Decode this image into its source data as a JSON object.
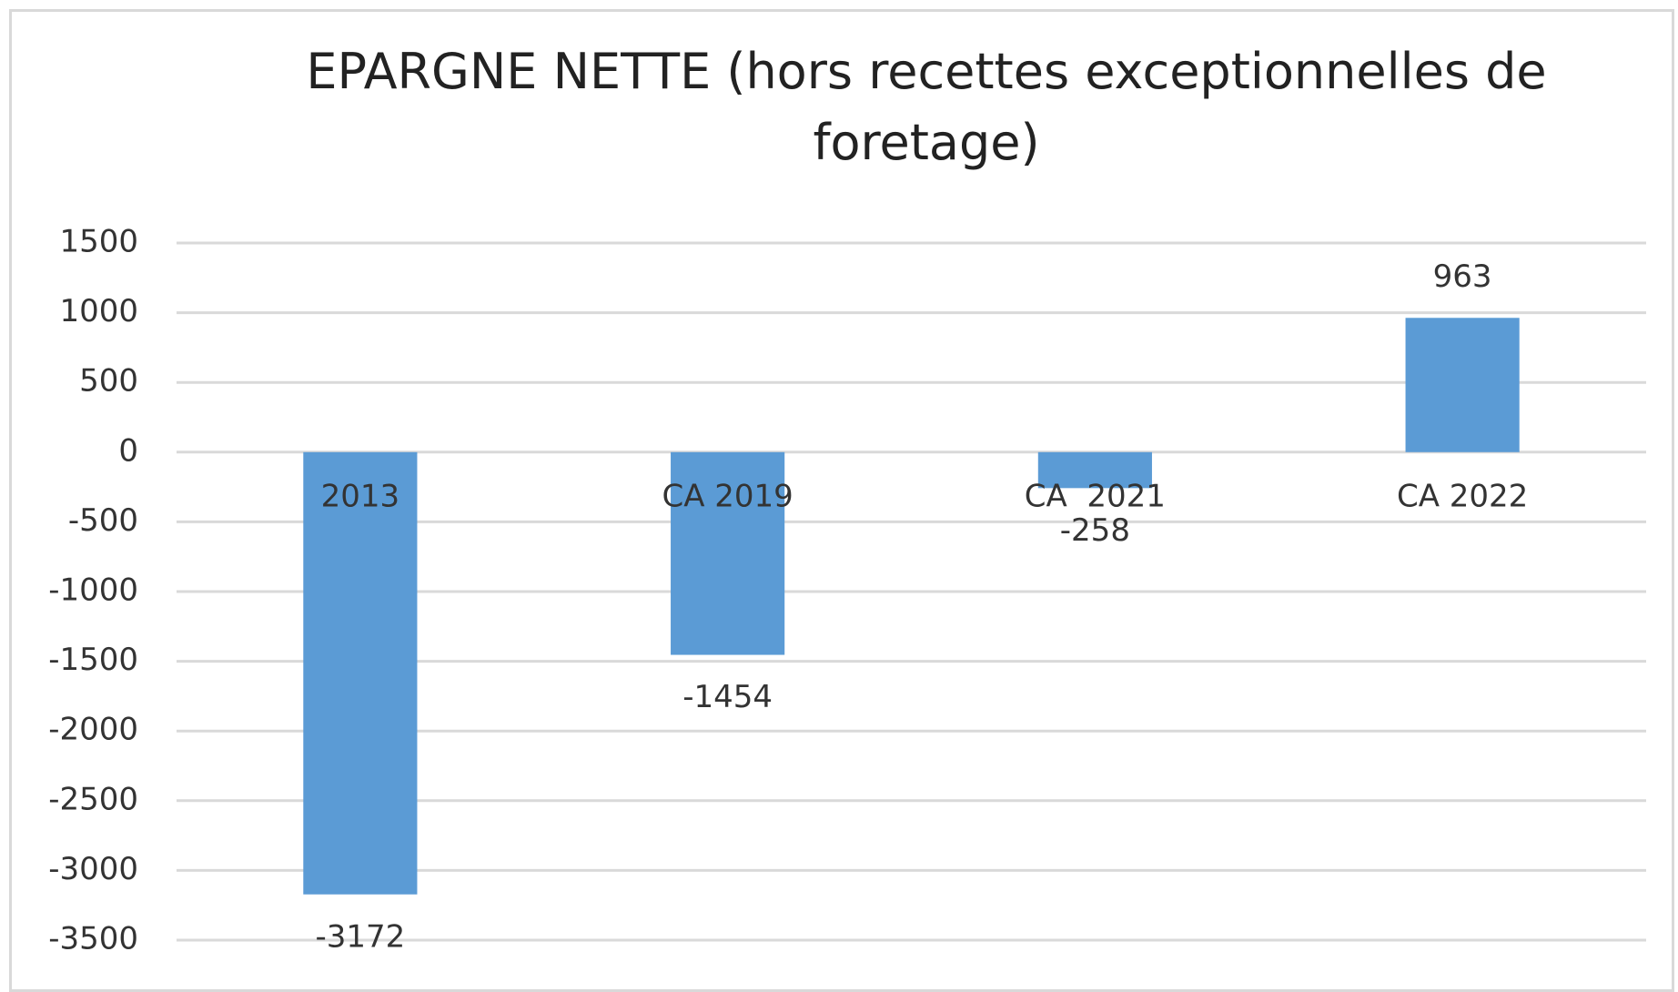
{
  "chart_data": {
    "type": "bar",
    "title": "EPARGNE NETTE (hors recettes exceptionnelles de foretage)",
    "categories": [
      "2013",
      "CA 2019",
      "CA  2021",
      "CA 2022"
    ],
    "values": [
      -3172,
      -1454,
      -258,
      963
    ],
    "color": "#5b9bd5",
    "ylim": [
      -3500,
      1500
    ],
    "yticks": [
      -3500,
      -3000,
      -2500,
      -2000,
      -1500,
      -1000,
      -500,
      0,
      500,
      1000,
      1500
    ],
    "grid": true
  }
}
